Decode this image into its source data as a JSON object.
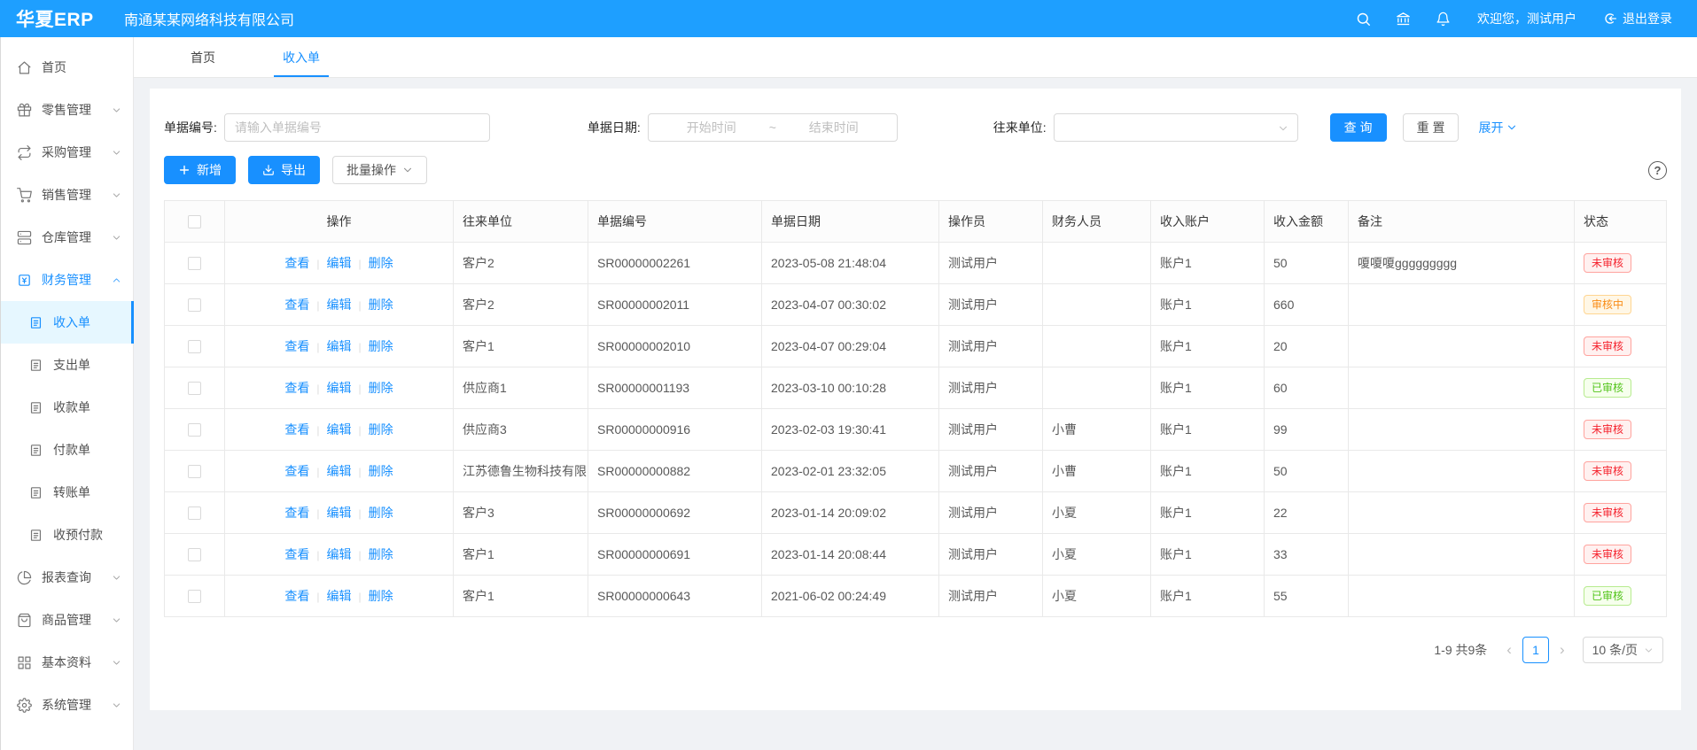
{
  "header": {
    "logo": "华夏ERP",
    "company": "南通某某网络科技有限公司",
    "welcome": "欢迎您，测试用户",
    "logout_label": "退出登录"
  },
  "sidebar": {
    "items": [
      {
        "key": "home",
        "label": "首页",
        "icon": "home",
        "type": "top"
      },
      {
        "key": "retail",
        "label": "零售管理",
        "icon": "gift",
        "type": "top",
        "chevron": "down"
      },
      {
        "key": "purchase",
        "label": "采购管理",
        "icon": "swap",
        "type": "top",
        "chevron": "down"
      },
      {
        "key": "sales",
        "label": "销售管理",
        "icon": "cart",
        "type": "top",
        "chevron": "down"
      },
      {
        "key": "warehouse",
        "label": "仓库管理",
        "icon": "storage",
        "type": "top",
        "chevron": "down"
      },
      {
        "key": "finance",
        "label": "财务管理",
        "icon": "finance",
        "type": "top",
        "chevron": "up",
        "active": true
      },
      {
        "key": "income-bill",
        "label": "收入单",
        "icon": "doc",
        "type": "sub",
        "selected": true
      },
      {
        "key": "expense-bill",
        "label": "支出单",
        "icon": "doc",
        "type": "sub"
      },
      {
        "key": "receipt-bill",
        "label": "收款单",
        "icon": "doc",
        "type": "sub"
      },
      {
        "key": "payment-bill",
        "label": "付款单",
        "icon": "doc",
        "type": "sub"
      },
      {
        "key": "transfer-bill",
        "label": "转账单",
        "icon": "doc",
        "type": "sub"
      },
      {
        "key": "prepayment",
        "label": "收预付款",
        "icon": "doc",
        "type": "sub"
      },
      {
        "key": "reports",
        "label": "报表查询",
        "icon": "pie",
        "type": "top",
        "chevron": "down"
      },
      {
        "key": "goods",
        "label": "商品管理",
        "icon": "bag",
        "type": "top",
        "chevron": "down"
      },
      {
        "key": "basic-data",
        "label": "基本资料",
        "icon": "grid",
        "type": "top",
        "chevron": "down"
      },
      {
        "key": "system",
        "label": "系统管理",
        "icon": "gear",
        "type": "top",
        "chevron": "down"
      }
    ]
  },
  "tabs": [
    {
      "label": "首页",
      "active": false
    },
    {
      "label": "收入单",
      "active": true
    }
  ],
  "filters": {
    "bill_no_label": "单据编号:",
    "bill_no_placeholder": "请输入单据编号",
    "date_label": "单据日期:",
    "date_start_placeholder": "开始时间",
    "date_separator": "~",
    "date_end_placeholder": "结束时间",
    "unit_label": "往来单位:",
    "search_button": "查 询",
    "reset_button": "重 置",
    "expand_link": "展开"
  },
  "toolbar": {
    "add_button": "新增",
    "export_button": "导出",
    "batch_button": "批量操作",
    "help_symbol": "?"
  },
  "table": {
    "columns": [
      "操作",
      "往来单位",
      "单据编号",
      "单据日期",
      "操作员",
      "财务人员",
      "收入账户",
      "收入金额",
      "备注",
      "状态"
    ],
    "action_labels": [
      "查看",
      "编辑",
      "删除"
    ],
    "rows": [
      {
        "customer": "客户2",
        "bill_no": "SR00000002261",
        "bill_date": "2023-05-08 21:48:04",
        "operator": "测试用户",
        "finance_staff": "",
        "account": "账户1",
        "amount": "50",
        "remark": "嗄嗄嗄ggggggggg",
        "status": "未审核",
        "status_type": "red"
      },
      {
        "customer": "客户2",
        "bill_no": "SR00000002011",
        "bill_date": "2023-04-07 00:30:02",
        "operator": "测试用户",
        "finance_staff": "",
        "account": "账户1",
        "amount": "660",
        "remark": "",
        "status": "审核中",
        "status_type": "orange"
      },
      {
        "customer": "客户1",
        "bill_no": "SR00000002010",
        "bill_date": "2023-04-07 00:29:04",
        "operator": "测试用户",
        "finance_staff": "",
        "account": "账户1",
        "amount": "20",
        "remark": "",
        "status": "未审核",
        "status_type": "red"
      },
      {
        "customer": "供应商1",
        "bill_no": "SR00000001193",
        "bill_date": "2023-03-10 00:10:28",
        "operator": "测试用户",
        "finance_staff": "",
        "account": "账户1",
        "amount": "60",
        "remark": "",
        "status": "已审核",
        "status_type": "green"
      },
      {
        "customer": "供应商3",
        "bill_no": "SR00000000916",
        "bill_date": "2023-02-03 19:30:41",
        "operator": "测试用户",
        "finance_staff": "小曹",
        "account": "账户1",
        "amount": "99",
        "remark": "",
        "status": "未审核",
        "status_type": "red"
      },
      {
        "customer": "江苏德鲁生物科技有限...",
        "bill_no": "SR00000000882",
        "bill_date": "2023-02-01 23:32:05",
        "operator": "测试用户",
        "finance_staff": "小曹",
        "account": "账户1",
        "amount": "50",
        "remark": "",
        "status": "未审核",
        "status_type": "red"
      },
      {
        "customer": "客户3",
        "bill_no": "SR00000000692",
        "bill_date": "2023-01-14 20:09:02",
        "operator": "测试用户",
        "finance_staff": "小夏",
        "account": "账户1",
        "amount": "22",
        "remark": "",
        "status": "未审核",
        "status_type": "red"
      },
      {
        "customer": "客户1",
        "bill_no": "SR00000000691",
        "bill_date": "2023-01-14 20:08:44",
        "operator": "测试用户",
        "finance_staff": "小夏",
        "account": "账户1",
        "amount": "33",
        "remark": "",
        "status": "未审核",
        "status_type": "red"
      },
      {
        "customer": "客户1",
        "bill_no": "SR00000000643",
        "bill_date": "2021-06-02 00:24:49",
        "operator": "测试用户",
        "finance_staff": "小夏",
        "account": "账户1",
        "amount": "55",
        "remark": "",
        "status": "已审核",
        "status_type": "green"
      }
    ]
  },
  "pagination": {
    "total_text": "1-9 共9条",
    "prev_symbol": "‹",
    "next_symbol": "›",
    "current_page": "1",
    "page_size": "10 条/页"
  },
  "colors": {
    "topbar": "#1e9fff",
    "primary": "#1890ff",
    "status_red": "#f5222d",
    "status_orange": "#fa8c16",
    "status_green": "#52c41a",
    "selected_menu_bg": "#e6f7ff"
  }
}
